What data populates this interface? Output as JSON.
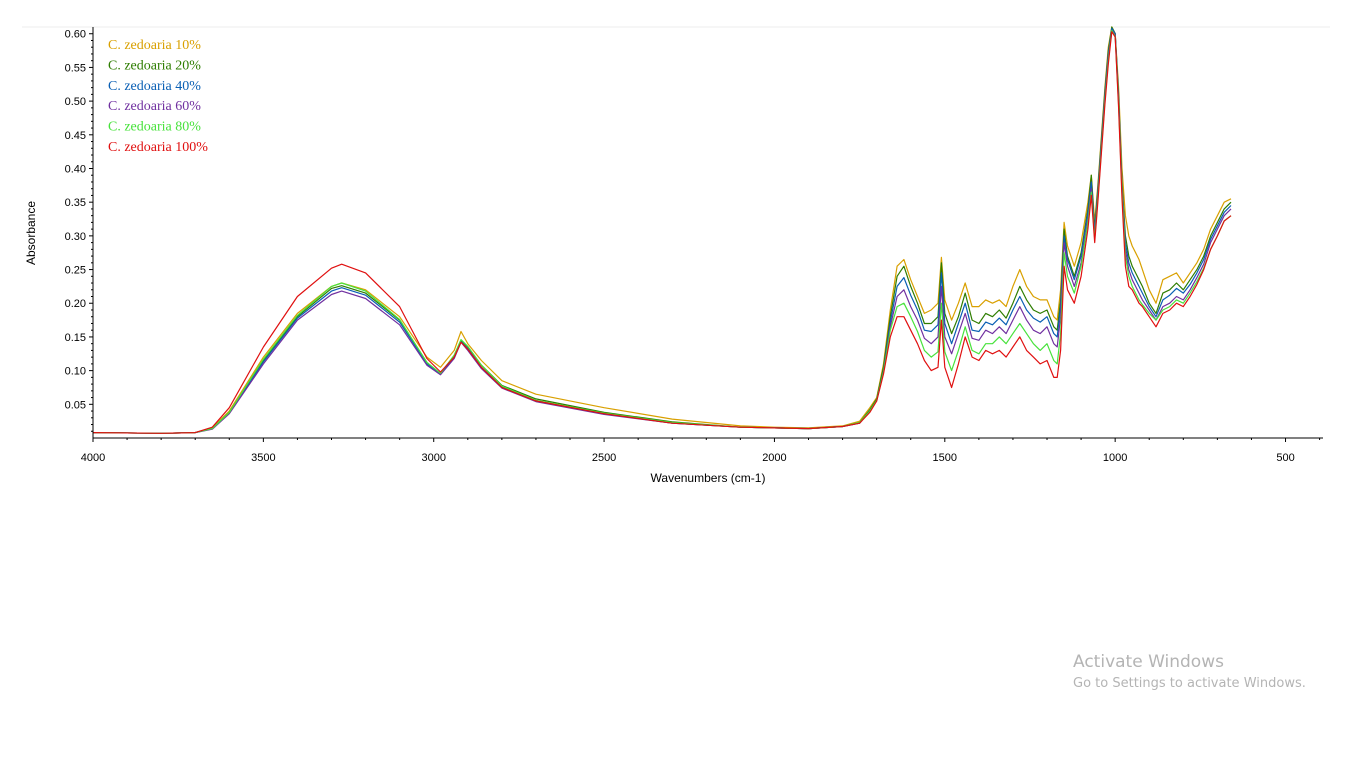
{
  "chart_data": {
    "type": "line",
    "title": "",
    "xlabel": "Wavenumbers (cm-1)",
    "ylabel": "Absorbance",
    "xlim": [
      4000,
      390
    ],
    "ylim": [
      0.0,
      0.61
    ],
    "x_reversed": true,
    "x_ticks": [
      4000,
      3500,
      3000,
      2500,
      2000,
      1500,
      1000,
      500
    ],
    "y_ticks": [
      0.05,
      0.1,
      0.15,
      0.2,
      0.25,
      0.3,
      0.35,
      0.4,
      0.45,
      0.5,
      0.55,
      0.6
    ],
    "x_tick_labels": [
      "4000",
      "3500",
      "3000",
      "2500",
      "2000",
      "1500",
      "1000",
      "500"
    ],
    "y_tick_labels": [
      "0.05",
      "0.10",
      "0.15",
      "0.20",
      "0.25",
      "0.30",
      "0.35",
      "0.40",
      "0.45",
      "0.50",
      "0.55",
      "0.60"
    ],
    "grid": false,
    "legend_position": "top-left",
    "x": [
      4000,
      3800,
      3700,
      3650,
      3600,
      3500,
      3400,
      3300,
      3270,
      3200,
      3100,
      3020,
      2980,
      2940,
      2920,
      2900,
      2860,
      2800,
      2700,
      2500,
      2300,
      2100,
      2000,
      1900,
      1800,
      1750,
      1720,
      1700,
      1680,
      1660,
      1640,
      1620,
      1600,
      1580,
      1560,
      1540,
      1520,
      1510,
      1500,
      1480,
      1460,
      1440,
      1420,
      1400,
      1380,
      1360,
      1340,
      1320,
      1300,
      1280,
      1260,
      1240,
      1220,
      1200,
      1180,
      1170,
      1160,
      1150,
      1140,
      1120,
      1100,
      1080,
      1070,
      1060,
      1050,
      1040,
      1030,
      1020,
      1010,
      1000,
      990,
      980,
      970,
      960,
      950,
      940,
      930,
      920,
      900,
      880,
      860,
      840,
      820,
      800,
      780,
      760,
      740,
      720,
      700,
      680,
      660
    ],
    "series": [
      {
        "name": "C. zedoaria 10%",
        "color": "#d9a000",
        "values": [
          0.008,
          0.007,
          0.008,
          0.015,
          0.04,
          0.12,
          0.185,
          0.225,
          0.23,
          0.22,
          0.18,
          0.12,
          0.105,
          0.13,
          0.158,
          0.14,
          0.115,
          0.085,
          0.065,
          0.045,
          0.028,
          0.018,
          0.016,
          0.015,
          0.018,
          0.025,
          0.045,
          0.06,
          0.11,
          0.19,
          0.255,
          0.265,
          0.235,
          0.21,
          0.185,
          0.19,
          0.2,
          0.268,
          0.205,
          0.175,
          0.2,
          0.23,
          0.195,
          0.195,
          0.205,
          0.2,
          0.205,
          0.195,
          0.225,
          0.25,
          0.225,
          0.21,
          0.205,
          0.205,
          0.18,
          0.175,
          0.22,
          0.32,
          0.285,
          0.255,
          0.29,
          0.35,
          0.39,
          0.32,
          0.38,
          0.45,
          0.52,
          0.58,
          0.61,
          0.6,
          0.52,
          0.4,
          0.33,
          0.3,
          0.285,
          0.275,
          0.265,
          0.25,
          0.22,
          0.2,
          0.235,
          0.24,
          0.245,
          0.23,
          0.245,
          0.26,
          0.28,
          0.31,
          0.33,
          0.35,
          0.355
        ]
      },
      {
        "name": "C. zedoaria 20%",
        "color": "#2e7d00",
        "values": [
          0.008,
          0.007,
          0.008,
          0.014,
          0.038,
          0.115,
          0.18,
          0.222,
          0.226,
          0.215,
          0.175,
          0.112,
          0.095,
          0.122,
          0.145,
          0.135,
          0.108,
          0.078,
          0.058,
          0.038,
          0.024,
          0.016,
          0.015,
          0.014,
          0.017,
          0.023,
          0.042,
          0.058,
          0.105,
          0.18,
          0.24,
          0.255,
          0.225,
          0.2,
          0.17,
          0.17,
          0.18,
          0.26,
          0.185,
          0.155,
          0.18,
          0.215,
          0.175,
          0.17,
          0.185,
          0.18,
          0.19,
          0.178,
          0.2,
          0.225,
          0.205,
          0.19,
          0.185,
          0.19,
          0.165,
          0.16,
          0.205,
          0.31,
          0.27,
          0.24,
          0.275,
          0.34,
          0.39,
          0.31,
          0.375,
          0.445,
          0.515,
          0.575,
          0.61,
          0.6,
          0.51,
          0.38,
          0.3,
          0.27,
          0.255,
          0.245,
          0.235,
          0.225,
          0.2,
          0.185,
          0.215,
          0.22,
          0.23,
          0.22,
          0.235,
          0.25,
          0.27,
          0.3,
          0.32,
          0.34,
          0.35
        ]
      },
      {
        "name": "C. zedoaria 40%",
        "color": "#0a5fb4",
        "values": [
          0.008,
          0.007,
          0.008,
          0.014,
          0.037,
          0.113,
          0.178,
          0.218,
          0.223,
          0.212,
          0.172,
          0.11,
          0.095,
          0.12,
          0.143,
          0.133,
          0.105,
          0.076,
          0.055,
          0.036,
          0.022,
          0.016,
          0.015,
          0.014,
          0.017,
          0.022,
          0.04,
          0.056,
          0.1,
          0.172,
          0.225,
          0.238,
          0.212,
          0.19,
          0.16,
          0.158,
          0.168,
          0.245,
          0.17,
          0.14,
          0.17,
          0.2,
          0.16,
          0.158,
          0.172,
          0.168,
          0.178,
          0.168,
          0.19,
          0.21,
          0.19,
          0.178,
          0.172,
          0.18,
          0.155,
          0.15,
          0.195,
          0.3,
          0.265,
          0.235,
          0.27,
          0.335,
          0.38,
          0.305,
          0.37,
          0.44,
          0.51,
          0.57,
          0.608,
          0.6,
          0.505,
          0.375,
          0.29,
          0.26,
          0.245,
          0.235,
          0.225,
          0.215,
          0.195,
          0.18,
          0.205,
          0.212,
          0.222,
          0.215,
          0.228,
          0.245,
          0.265,
          0.295,
          0.315,
          0.335,
          0.345
        ]
      },
      {
        "name": "C. zedoaria 60%",
        "color": "#7030a0",
        "values": [
          0.008,
          0.007,
          0.008,
          0.013,
          0.036,
          0.11,
          0.175,
          0.213,
          0.218,
          0.207,
          0.168,
          0.108,
          0.094,
          0.118,
          0.142,
          0.13,
          0.103,
          0.074,
          0.054,
          0.035,
          0.022,
          0.016,
          0.015,
          0.014,
          0.017,
          0.022,
          0.04,
          0.055,
          0.098,
          0.165,
          0.21,
          0.22,
          0.195,
          0.175,
          0.148,
          0.14,
          0.15,
          0.225,
          0.15,
          0.125,
          0.155,
          0.185,
          0.148,
          0.145,
          0.16,
          0.155,
          0.165,
          0.155,
          0.175,
          0.195,
          0.175,
          0.16,
          0.155,
          0.165,
          0.14,
          0.135,
          0.18,
          0.29,
          0.255,
          0.225,
          0.26,
          0.325,
          0.37,
          0.3,
          0.365,
          0.435,
          0.505,
          0.565,
          0.605,
          0.598,
          0.5,
          0.37,
          0.28,
          0.25,
          0.235,
          0.225,
          0.215,
          0.205,
          0.19,
          0.175,
          0.195,
          0.2,
          0.21,
          0.205,
          0.22,
          0.238,
          0.258,
          0.29,
          0.31,
          0.33,
          0.34
        ]
      },
      {
        "name": "C. zedoaria 80%",
        "color": "#48e23c",
        "values": [
          0.008,
          0.007,
          0.008,
          0.014,
          0.038,
          0.117,
          0.182,
          0.225,
          0.23,
          0.218,
          0.176,
          0.112,
          0.096,
          0.123,
          0.146,
          0.136,
          0.108,
          0.077,
          0.056,
          0.037,
          0.023,
          0.016,
          0.015,
          0.014,
          0.017,
          0.023,
          0.04,
          0.056,
          0.098,
          0.16,
          0.195,
          0.2,
          0.18,
          0.158,
          0.13,
          0.12,
          0.128,
          0.2,
          0.128,
          0.1,
          0.13,
          0.165,
          0.13,
          0.125,
          0.14,
          0.14,
          0.15,
          0.14,
          0.155,
          0.17,
          0.155,
          0.14,
          0.13,
          0.14,
          0.115,
          0.11,
          0.155,
          0.275,
          0.24,
          0.215,
          0.255,
          0.32,
          0.365,
          0.295,
          0.36,
          0.43,
          0.5,
          0.56,
          0.605,
          0.596,
          0.495,
          0.365,
          0.27,
          0.24,
          0.225,
          0.215,
          0.205,
          0.198,
          0.185,
          0.175,
          0.19,
          0.195,
          0.205,
          0.2,
          0.215,
          0.232,
          0.252,
          0.28,
          0.3,
          0.322,
          0.33
        ]
      },
      {
        "name": "C. zedoaria 100%",
        "color": "#e01010",
        "values": [
          0.008,
          0.007,
          0.008,
          0.016,
          0.045,
          0.135,
          0.21,
          0.252,
          0.258,
          0.245,
          0.195,
          0.118,
          0.098,
          0.12,
          0.142,
          0.132,
          0.105,
          0.075,
          0.055,
          0.036,
          0.022,
          0.016,
          0.015,
          0.014,
          0.017,
          0.022,
          0.038,
          0.055,
          0.095,
          0.15,
          0.18,
          0.18,
          0.16,
          0.14,
          0.115,
          0.1,
          0.105,
          0.175,
          0.105,
          0.075,
          0.11,
          0.15,
          0.12,
          0.115,
          0.13,
          0.125,
          0.13,
          0.12,
          0.135,
          0.15,
          0.13,
          0.12,
          0.11,
          0.115,
          0.09,
          0.09,
          0.13,
          0.255,
          0.22,
          0.2,
          0.24,
          0.31,
          0.36,
          0.29,
          0.355,
          0.425,
          0.495,
          0.555,
          0.603,
          0.595,
          0.49,
          0.355,
          0.255,
          0.225,
          0.22,
          0.21,
          0.2,
          0.195,
          0.18,
          0.165,
          0.185,
          0.19,
          0.2,
          0.195,
          0.21,
          0.228,
          0.25,
          0.28,
          0.3,
          0.322,
          0.33
        ]
      }
    ]
  },
  "watermark": {
    "title": "Activate Windows",
    "subtitle": "Go to Settings to activate Windows."
  }
}
